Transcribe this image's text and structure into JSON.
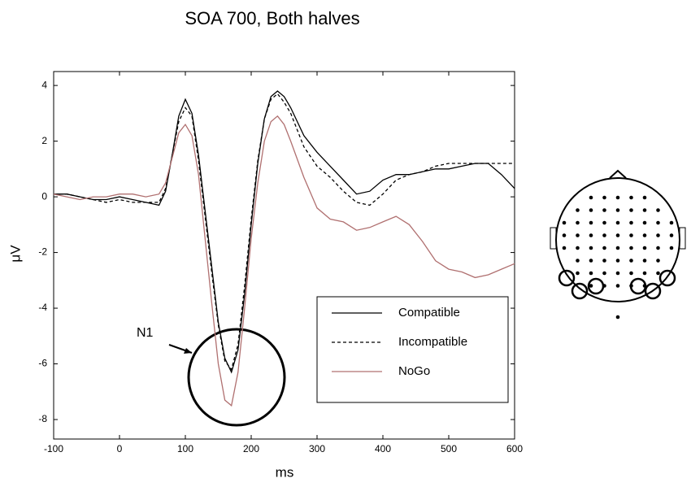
{
  "chart_data": {
    "type": "line",
    "title": "SOA 700, Both halves",
    "x_label": "ms",
    "y_label": "μV",
    "x": [
      -100,
      -80,
      -60,
      -40,
      -20,
      0,
      20,
      40,
      60,
      70,
      80,
      90,
      100,
      110,
      120,
      130,
      140,
      150,
      160,
      170,
      180,
      190,
      200,
      210,
      220,
      230,
      240,
      250,
      260,
      280,
      300,
      320,
      340,
      360,
      380,
      400,
      420,
      440,
      460,
      480,
      500,
      520,
      540,
      560,
      580,
      600
    ],
    "series": [
      {
        "name": "Compatible",
        "color": "#000000",
        "dash": "solid",
        "values": [
          0.1,
          0.1,
          0.0,
          -0.1,
          -0.1,
          0.0,
          -0.1,
          -0.2,
          -0.3,
          0.2,
          1.5,
          2.9,
          3.5,
          3.0,
          1.5,
          -0.5,
          -2.5,
          -4.5,
          -5.8,
          -6.3,
          -5.5,
          -3.5,
          -1.0,
          1.2,
          2.8,
          3.6,
          3.8,
          3.6,
          3.2,
          2.2,
          1.6,
          1.1,
          0.6,
          0.1,
          0.2,
          0.6,
          0.8,
          0.8,
          0.9,
          1.0,
          1.0,
          1.1,
          1.2,
          1.2,
          0.8,
          0.3
        ]
      },
      {
        "name": "Incompatible",
        "color": "#000000",
        "dash": "dashed",
        "values": [
          0.1,
          0.1,
          0.0,
          -0.1,
          -0.2,
          -0.1,
          -0.2,
          -0.2,
          -0.2,
          0.3,
          1.5,
          2.7,
          3.2,
          2.9,
          1.3,
          -0.7,
          -2.7,
          -4.6,
          -5.9,
          -6.2,
          -5.3,
          -3.2,
          -0.8,
          1.3,
          2.8,
          3.5,
          3.7,
          3.4,
          3.0,
          1.8,
          1.1,
          0.7,
          0.2,
          -0.2,
          -0.3,
          0.1,
          0.6,
          0.8,
          0.9,
          1.1,
          1.2,
          1.2,
          1.2,
          1.2,
          1.2,
          1.2
        ]
      },
      {
        "name": "NoGo",
        "color": "#b07070",
        "dash": "solid",
        "values": [
          0.1,
          0.0,
          -0.1,
          0.0,
          0.0,
          0.1,
          0.1,
          0.0,
          0.1,
          0.5,
          1.4,
          2.3,
          2.6,
          2.2,
          0.8,
          -1.5,
          -3.8,
          -6.0,
          -7.3,
          -7.5,
          -6.3,
          -4.0,
          -1.5,
          0.5,
          2.0,
          2.7,
          2.9,
          2.6,
          2.0,
          0.7,
          -0.4,
          -0.8,
          -0.9,
          -1.2,
          -1.1,
          -0.9,
          -0.7,
          -1.0,
          -1.6,
          -2.3,
          -2.6,
          -2.7,
          -2.9,
          -2.8,
          -2.6,
          -2.4
        ]
      }
    ],
    "xlim": [
      -100,
      600
    ],
    "xticks": [
      -100,
      0,
      100,
      200,
      300,
      400,
      500,
      600
    ],
    "ylim": [
      -8.7,
      4.5
    ],
    "yticks": [
      -8,
      -6,
      -4,
      -2,
      0,
      2,
      4
    ],
    "annotation": "N1",
    "legend": "lower right"
  }
}
